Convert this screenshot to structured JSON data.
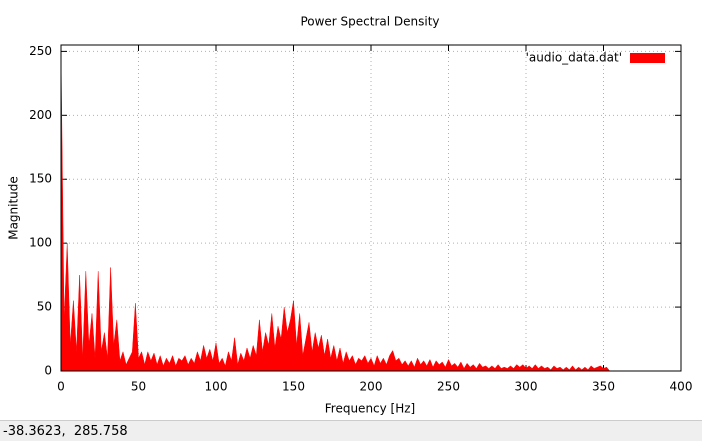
{
  "chart_data": {
    "type": "area",
    "title": "Power Spectral Density",
    "x_label": "Frequency [Hz]",
    "y_label": "Magnitude",
    "x": [
      0,
      2,
      4,
      6,
      8,
      10,
      12,
      14,
      16,
      18,
      20,
      22,
      24,
      26,
      28,
      30,
      32,
      34,
      36,
      38,
      40,
      42,
      44,
      46,
      48,
      50,
      52,
      54,
      56,
      58,
      60,
      62,
      64,
      66,
      68,
      70,
      72,
      74,
      76,
      78,
      80,
      82,
      84,
      86,
      88,
      90,
      92,
      94,
      96,
      98,
      100,
      102,
      104,
      106,
      108,
      110,
      112,
      114,
      116,
      118,
      120,
      122,
      124,
      126,
      128,
      130,
      132,
      134,
      136,
      138,
      140,
      142,
      144,
      146,
      148,
      150,
      152,
      154,
      156,
      158,
      160,
      162,
      164,
      166,
      168,
      170,
      172,
      174,
      176,
      178,
      180,
      182,
      184,
      186,
      188,
      190,
      192,
      194,
      196,
      198,
      200,
      202,
      204,
      206,
      208,
      210,
      212,
      214,
      216,
      218,
      220,
      222,
      224,
      226,
      228,
      230,
      232,
      234,
      236,
      238,
      240,
      242,
      244,
      246,
      248,
      250,
      252,
      254,
      256,
      258,
      260,
      262,
      264,
      266,
      268,
      270,
      272,
      274,
      276,
      278,
      280,
      282,
      284,
      286,
      288,
      290,
      292,
      294,
      296,
      298,
      300,
      302,
      304,
      306,
      308,
      310,
      312,
      314,
      316,
      318,
      320,
      322,
      324,
      326,
      328,
      330,
      332,
      334,
      336,
      338,
      340,
      342,
      344,
      346,
      348,
      350,
      352,
      354
    ],
    "series": [
      {
        "name": "'audio_data.dat'",
        "color": "#ff0000",
        "values": [
          250,
          40,
          100,
          20,
          55,
          15,
          75,
          10,
          78,
          20,
          45,
          10,
          78,
          15,
          30,
          10,
          81,
          20,
          40,
          8,
          15,
          5,
          10,
          15,
          53,
          10,
          15,
          5,
          15,
          8,
          14,
          5,
          12,
          4,
          10,
          6,
          12,
          4,
          10,
          8,
          12,
          5,
          10,
          6,
          15,
          8,
          20,
          10,
          17,
          8,
          22,
          6,
          10,
          4,
          15,
          8,
          26,
          5,
          14,
          8,
          18,
          10,
          20,
          12,
          40,
          15,
          30,
          20,
          45,
          18,
          35,
          25,
          50,
          30,
          40,
          55,
          20,
          45,
          12,
          25,
          38,
          15,
          30,
          18,
          28,
          12,
          25,
          10,
          20,
          8,
          18,
          6,
          15,
          8,
          12,
          5,
          10,
          8,
          12,
          6,
          10,
          4,
          12,
          6,
          10,
          5,
          12,
          16,
          8,
          10,
          5,
          8,
          4,
          8,
          3,
          10,
          5,
          8,
          4,
          9,
          3,
          8,
          5,
          7,
          3,
          9,
          4,
          6,
          3,
          7,
          2,
          6,
          3,
          5,
          2,
          6,
          3,
          4,
          2,
          4,
          2,
          5,
          2,
          3,
          2,
          4,
          2,
          5,
          3,
          5,
          2,
          4,
          2,
          5,
          2,
          4,
          2,
          3,
          1,
          4,
          2,
          3,
          1,
          3,
          1,
          4,
          1,
          3,
          1,
          3,
          1,
          4,
          2,
          3,
          4,
          2,
          3,
          0
        ]
      }
    ],
    "xlim": [
      0,
      400
    ],
    "xticks": [
      0,
      50,
      100,
      150,
      200,
      250,
      300,
      350,
      400
    ],
    "ylim": [
      0,
      255
    ],
    "yticks": [
      0,
      50,
      100,
      150,
      200,
      250
    ],
    "grid": true,
    "legend": "top-right"
  },
  "status_bar": "-38.3623,  285.758"
}
